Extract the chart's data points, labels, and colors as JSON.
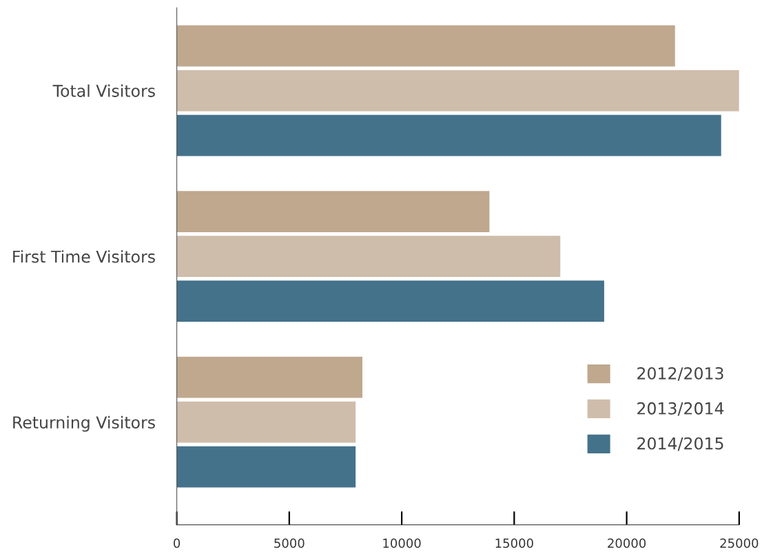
{
  "chart_data": {
    "type": "bar",
    "orientation": "horizontal",
    "categories": [
      "Total Visitors",
      "First Time Visitors",
      "Returning Visitors"
    ],
    "series": [
      {
        "name": "2012/2013",
        "color": "#bfa88e",
        "values": [
          22150,
          13900,
          8250
        ]
      },
      {
        "name": "2013/2014",
        "color": "#cfbdab",
        "values": [
          25000,
          17050,
          7950
        ]
      },
      {
        "name": "2014/2015",
        "color": "#45728b",
        "values": [
          24200,
          19000,
          7950
        ]
      }
    ],
    "xlim": [
      0,
      25000
    ],
    "xticks": [
      0,
      5000,
      10000,
      15000,
      20000,
      25000
    ],
    "grid": false,
    "legend": "bottom right"
  }
}
